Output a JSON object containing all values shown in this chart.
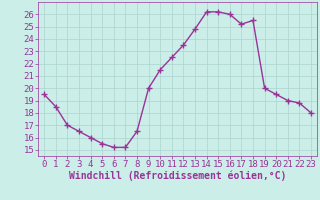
{
  "x": [
    0,
    1,
    2,
    3,
    4,
    5,
    6,
    7,
    8,
    9,
    10,
    11,
    12,
    13,
    14,
    15,
    16,
    17,
    18,
    19,
    20,
    21,
    22,
    23
  ],
  "y": [
    19.5,
    18.5,
    17.0,
    16.5,
    16.0,
    15.5,
    15.2,
    15.2,
    16.5,
    20.0,
    21.5,
    22.5,
    23.5,
    24.8,
    26.2,
    26.2,
    26.0,
    25.2,
    25.5,
    20.0,
    19.5,
    19.0,
    18.8,
    18.0
  ],
  "line_color": "#993399",
  "marker": "+",
  "marker_size": 4,
  "line_width": 1.0,
  "bg_color": "#cceee8",
  "grid_color": "#aad4ce",
  "xlabel": "Windchill (Refroidissement éolien,°C)",
  "xlabel_fontsize": 7,
  "tick_fontsize": 6.5,
  "xlim": [
    -0.5,
    23.5
  ],
  "ylim": [
    14.5,
    27
  ],
  "yticks": [
    15,
    16,
    17,
    18,
    19,
    20,
    21,
    22,
    23,
    24,
    25,
    26
  ],
  "xticks": [
    0,
    1,
    2,
    3,
    4,
    5,
    6,
    7,
    8,
    9,
    10,
    11,
    12,
    13,
    14,
    15,
    16,
    17,
    18,
    19,
    20,
    21,
    22,
    23
  ]
}
